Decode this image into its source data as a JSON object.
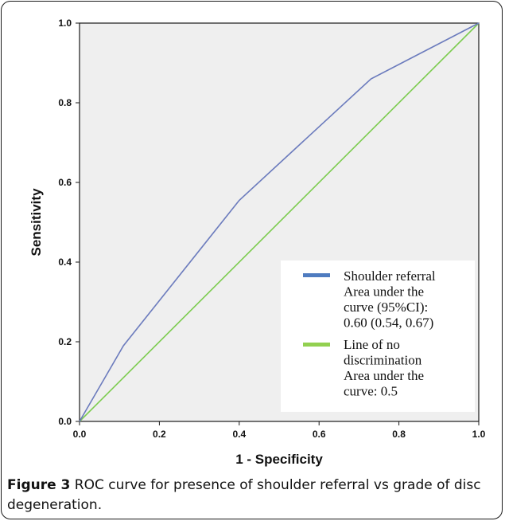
{
  "chart_data": {
    "type": "line",
    "xlabel": "1 - Specificity",
    "ylabel": "Sensitivity",
    "xlim": [
      0,
      1
    ],
    "ylim": [
      0,
      1
    ],
    "x_ticks": [
      "0.0",
      "0.2",
      "0.4",
      "0.6",
      "0.8",
      "1.0"
    ],
    "y_ticks": [
      "0.0",
      "0.2",
      "0.4",
      "0.6",
      "0.8",
      "1.0"
    ],
    "grid": false,
    "legend_position": "bottom-right",
    "series": [
      {
        "name": "Shoulder referral",
        "legend_lines": [
          "Shoulder referral",
          "Area under the",
          "curve (95%CI):",
          "0.60 (0.54, 0.67)"
        ],
        "color": "#6b7bbd",
        "x": [
          0.0,
          0.11,
          0.4,
          0.73,
          1.0
        ],
        "y": [
          0.0,
          0.19,
          0.555,
          0.86,
          1.0
        ]
      },
      {
        "name": "Line of no discrimination",
        "legend_lines": [
          "Line of no",
          "discrimination",
          "Area under the",
          "curve: 0.5"
        ],
        "color": "#7ccc4f",
        "x": [
          0.0,
          1.0
        ],
        "y": [
          0.0,
          1.0
        ]
      }
    ],
    "legend_swatch_colors": [
      "#4f7cc0",
      "#92d050"
    ],
    "plot_background": "#efefef"
  },
  "caption": {
    "label": "Figure 3",
    "text": " ROC curve for presence of shoulder referral vs grade of disc degeneration."
  }
}
